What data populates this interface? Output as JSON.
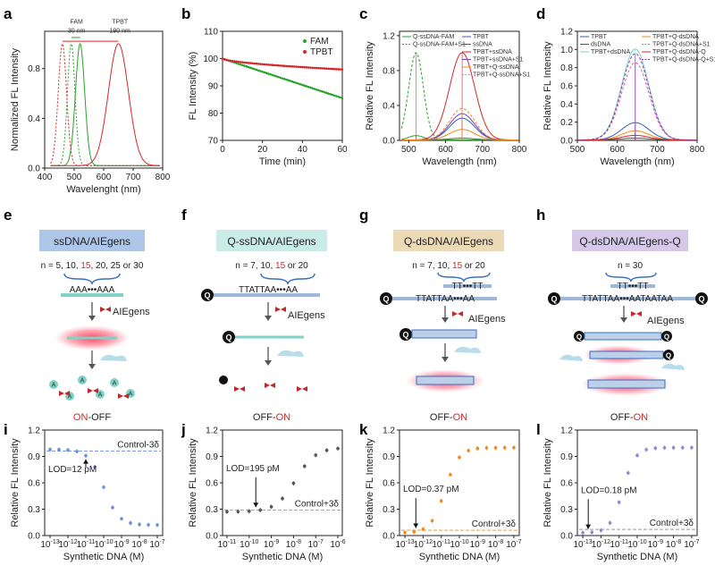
{
  "panel_letters": [
    "a",
    "b",
    "c",
    "d",
    "e",
    "f",
    "g",
    "h",
    "i",
    "j",
    "k",
    "l"
  ],
  "colors": {
    "green": "#2aa02a",
    "red": "#d62728",
    "blue": "#3060c8",
    "purple": "#7b3fb8",
    "orange": "#f08a1c",
    "pink": "#e85aa0",
    "dark": "#333333",
    "box_blue": "#aec6e8",
    "box_cyan": "#c9ece6",
    "box_tan": "#ecd9b6",
    "box_purple": "#d5c8e8",
    "scatter_i": "#6f8fd8",
    "scatter_j": "#555555",
    "scatter_k": "#f08a1c",
    "scatter_l": "#8a8ad8"
  },
  "chart_data": [
    {
      "id": "a",
      "type": "line",
      "xlabel": "Wavelenght (nm)",
      "ylabel": "Normalized FL Intensity",
      "xlim": [
        400,
        800
      ],
      "ylim": [
        0,
        1.1
      ],
      "xticks": [
        "400",
        "500",
        "600",
        "700",
        "800"
      ],
      "yticks": [
        "0.0",
        "0.4",
        "0.8"
      ],
      "annotations": [
        {
          "text": "FAM",
          "sub": "30 nm",
          "color": "green"
        },
        {
          "text": "TPBT",
          "sub": "190 nm",
          "color": "red"
        }
      ],
      "series": [
        {
          "name": "FAM excitation",
          "color": "#2aa02a",
          "dashed": true,
          "peak": 490,
          "width": 18
        },
        {
          "name": "FAM emission",
          "color": "#2aa02a",
          "dashed": false,
          "peak": 520,
          "width": 22
        },
        {
          "name": "TPBT excitation",
          "color": "#d62728",
          "dashed": true,
          "peak": 460,
          "width": 20
        },
        {
          "name": "TPBT emission",
          "color": "#d62728",
          "dashed": false,
          "peak": 650,
          "width": 48
        }
      ]
    },
    {
      "id": "b",
      "type": "scatter",
      "xlabel": "Time (min)",
      "ylabel": "FL Intensity (%)",
      "xlim": [
        0,
        60
      ],
      "ylim": [
        70,
        110
      ],
      "xticks": [
        "0",
        "20",
        "40",
        "60"
      ],
      "yticks": [
        "70",
        "80",
        "90",
        "100",
        "110"
      ],
      "legend": [
        "FAM",
        "TPBT"
      ],
      "series": [
        {
          "name": "FAM",
          "color": "#2aa02a",
          "start": 100,
          "end": 85.5
        },
        {
          "name": "TPBT",
          "color": "#d62728",
          "start": 100,
          "end": 96
        }
      ]
    },
    {
      "id": "c",
      "type": "line",
      "xlabel": "Wavelength (nm)",
      "ylabel": "Relative FL Intensity",
      "xlim": [
        475,
        800
      ],
      "ylim": [
        0,
        1.25
      ],
      "xticks": [
        "500",
        "600",
        "700",
        "800"
      ],
      "yticks": [
        "0.0",
        "0.4",
        "0.8",
        "1.2"
      ],
      "legend_left": [
        "Q-ssDNA-FAM",
        "Q-ssDNA-FAM+S1"
      ],
      "legend_right": [
        "TPBT",
        "ssDNA",
        "TPBT+ssDNA",
        "TPBT+ssDNA+S1",
        "TPBT+Q-ssDNA",
        "TPBT+Q-ssDNA+S1"
      ],
      "series": [
        {
          "name": "Q-ssDNA-FAM",
          "color": "#2aa02a",
          "dashed": false,
          "peak": 520,
          "amp": 0.05
        },
        {
          "name": "Q-ssDNA-FAM+S1",
          "color": "#2aa02a",
          "dashed": true,
          "peak": 520,
          "amp": 1.0
        },
        {
          "name": "TPBT",
          "color": "#3060c8",
          "dashed": false,
          "peak": 645,
          "amp": 0.25
        },
        {
          "name": "ssDNA",
          "color": "#555555",
          "dashed": false,
          "peak": 645,
          "amp": 0.02
        },
        {
          "name": "TPBT+ssDNA",
          "color": "#d62728",
          "dashed": false,
          "peak": 645,
          "amp": 1.0
        },
        {
          "name": "TPBT+ssDNA+S1",
          "color": "#7b3fb8",
          "dashed": false,
          "peak": 645,
          "amp": 0.3
        },
        {
          "name": "TPBT+Q-ssDNA",
          "color": "#f08a1c",
          "dashed": false,
          "peak": 645,
          "amp": 0.12
        },
        {
          "name": "TPBT+Q-ssDNA+S1",
          "color": "#f08a1c",
          "dashed": true,
          "peak": 645,
          "amp": 0.36
        }
      ]
    },
    {
      "id": "d",
      "type": "line",
      "xlabel": "Wavelength (nm)",
      "ylabel": "Relative FL Intensity",
      "xlim": [
        500,
        800
      ],
      "ylim": [
        0,
        1.2
      ],
      "xticks": [
        "500",
        "600",
        "700",
        "800"
      ],
      "yticks": [
        "0.0",
        "0.2",
        "0.4",
        "0.6",
        "0.8",
        "1.0",
        "1.2"
      ],
      "legend_left": [
        "TPBT",
        "dsDNA",
        "TPBT+dsDNA"
      ],
      "legend_right": [
        "TPBT+Q-dsDNA",
        "TPBT+Q-dsDNA+S1",
        "TPBT+Q-dsDNA-Q",
        "TPBT+Q-dsDNA-Q+S1"
      ],
      "series": [
        {
          "name": "TPBT",
          "color": "#3060c8",
          "dashed": false,
          "peak": 645,
          "amp": 0.19
        },
        {
          "name": "dsDNA",
          "color": "#555555",
          "dashed": false,
          "peak": 645,
          "amp": 0.02
        },
        {
          "name": "TPBT+dsDNA",
          "color": "#7dd3c0",
          "dashed": false,
          "peak": 645,
          "amp": 1.0
        },
        {
          "name": "TPBT+Q-dsDNA",
          "color": "#f08a1c",
          "dashed": false,
          "peak": 645,
          "amp": 0.1
        },
        {
          "name": "TPBT+Q-dsDNA+S1",
          "color": "#e85aa0",
          "dashed": true,
          "peak": 645,
          "amp": 0.85
        },
        {
          "name": "TPBT+Q-dsDNA-Q",
          "color": "#d62728",
          "dashed": false,
          "peak": 645,
          "amp": 0.05
        },
        {
          "name": "TPBT+Q-dsDNA-Q+S1",
          "color": "#7b3fb8",
          "dashed": true,
          "peak": 645,
          "amp": 0.95
        }
      ]
    },
    {
      "id": "i",
      "type": "scatter",
      "xlabel": "Synthetic DNA (M)",
      "ylabel": "Relative FL Intensity",
      "xlim": [
        -13.3,
        -6.7
      ],
      "ylim": [
        0,
        1.2
      ],
      "xtick_exps": [
        "-13",
        "-12",
        "-11",
        "-10",
        "-9",
        "-8",
        "-7"
      ],
      "yticks": [
        "0.0",
        "0.3",
        "0.6",
        "0.9",
        "1.2"
      ],
      "mode": "decrease",
      "y_hi": 0.98,
      "y_lo": 0.12,
      "x50": -10.0,
      "slope": 1.5,
      "threshold_label": "Control-3δ",
      "threshold": 0.96,
      "lod_label": "LOD=12 pM",
      "lod_x": -11.0,
      "state": {
        "on": "ON",
        "sep": "-",
        "off": "OFF"
      }
    },
    {
      "id": "j",
      "type": "scatter",
      "xlabel": "Synthetic DNA (M)",
      "ylabel": "Relative FL Intensity",
      "xlim": [
        -11.2,
        -5.8
      ],
      "ylim": [
        0,
        1.2
      ],
      "xtick_exps": [
        "-11",
        "-10",
        "-9",
        "-8",
        "-7",
        "-6"
      ],
      "yticks": [
        "0.0",
        "0.3",
        "0.6",
        "0.9",
        "1.2"
      ],
      "mode": "increase",
      "y_hi": 1.0,
      "y_lo": 0.27,
      "x50": -7.9,
      "slope": 1.4,
      "threshold_label": "Control+3δ",
      "threshold": 0.29,
      "lod_label": "LOD=195 pM",
      "lod_x": -9.7,
      "state": {
        "off": "OFF",
        "sep": "-",
        "on": "ON"
      }
    },
    {
      "id": "k",
      "type": "scatter",
      "xlabel": "Synthetic DNA (M)",
      "ylabel": "Relative FL Intensity",
      "xlim": [
        -13.3,
        -6.7
      ],
      "ylim": [
        0,
        1.2
      ],
      "xtick_exps": [
        "-13",
        "-12",
        "-11",
        "-10",
        "-9",
        "-8",
        "-7"
      ],
      "yticks": [
        "0.0",
        "0.3",
        "0.6",
        "0.9",
        "1.2"
      ],
      "mode": "increase",
      "y_hi": 1.0,
      "y_lo": 0.03,
      "x50": -10.8,
      "slope": 1.6,
      "threshold_label": "Control+3δ",
      "threshold": 0.06,
      "lod_label": "LOD=0.37 pM",
      "lod_x": -12.4,
      "state": {
        "off": "OFF",
        "sep": "-",
        "on": "ON"
      }
    },
    {
      "id": "l",
      "type": "scatter",
      "xlabel": "Synthetic DNA (M)",
      "ylabel": "Relative FL Intensity",
      "xlim": [
        -13.3,
        -6.7
      ],
      "ylim": [
        0,
        1.2
      ],
      "xtick_exps": [
        "-13",
        "-12",
        "-11",
        "-10",
        "-9",
        "-8",
        "-7"
      ],
      "yticks": [
        "0.0",
        "0.3",
        "0.6",
        "0.9",
        "1.2"
      ],
      "mode": "increase",
      "y_hi": 1.0,
      "y_lo": 0.03,
      "x50": -10.8,
      "slope": 1.8,
      "threshold_label": "Control+3δ",
      "threshold": 0.07,
      "lod_label": "LOD=0.18 pM",
      "lod_x": -12.7,
      "state": {
        "off": "OFF",
        "sep": "-",
        "on": "ON"
      }
    }
  ],
  "schemes": {
    "e": {
      "title": "ssDNA/AIEgens",
      "n_prefix": "n = 5, 10, ",
      "n_red": "15",
      "n_suffix": ", 20, 25 or 30",
      "strand": "AAA•••AAA",
      "label": "AIEgens",
      "state_on": "ON",
      "state_sep": "-",
      "state_off": "OFF",
      "base": "A"
    },
    "f": {
      "title": "Q-ssDNA/AIEgens",
      "n_prefix": "n = 7, 10, ",
      "n_red": "15",
      "n_suffix": " or 20",
      "strand": "TTATTAA•••AA",
      "label": "AIEgens",
      "state_off": "OFF",
      "state_sep": "-",
      "state_on": "ON",
      "q": "Q"
    },
    "g": {
      "title": "Q-dsDNA/AIEgens",
      "n_prefix": "n = 7, 10, ",
      "n_red": "15",
      "n_suffix": " or 20",
      "strand": "TTATTAA•••AA",
      "top": "TT•••TT",
      "label": "AIEgens",
      "state_off": "OFF",
      "state_sep": "-",
      "state_on": "ON",
      "q": "Q"
    },
    "h": {
      "title": "Q-dsDNA/AIEgens-Q",
      "n_prefix": "n = 30",
      "strand": "TTATTAA•••AATAATAA",
      "top": "TT•••TT",
      "label": "AIEgens",
      "state_off": "OFF",
      "state_sep": "-",
      "state_on": "ON",
      "q": "Q"
    }
  }
}
